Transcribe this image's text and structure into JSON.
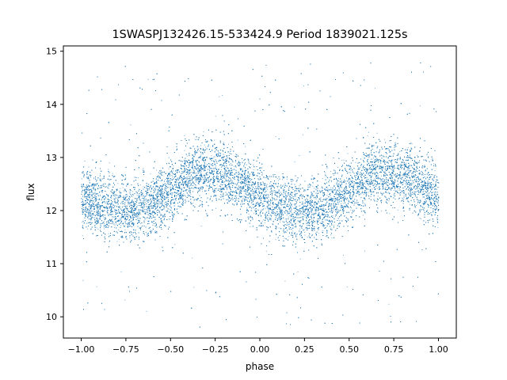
{
  "chart_data": {
    "type": "scatter",
    "title": "1SWASPJ132426.15-533424.9 Period 1839021.125s",
    "xlabel": "phase",
    "ylabel": "flux",
    "xlim": [
      -1.1,
      1.1
    ],
    "ylim": [
      9.6,
      15.1
    ],
    "xticks": [
      "−1.00",
      "−0.75",
      "−0.50",
      "−0.25",
      "0.00",
      "0.25",
      "0.50",
      "0.75",
      "1.00"
    ],
    "yticks": [
      "10",
      "11",
      "12",
      "13",
      "14",
      "15"
    ],
    "grid": false,
    "legend": "none",
    "point_color": "#1f77b4",
    "series": [
      {
        "phase_range": [
          -1.0,
          1.0
        ],
        "points": 24000,
        "trend_phase": [
          -1.0,
          -0.875,
          -0.75,
          -0.625,
          -0.5,
          -0.375,
          -0.25,
          -0.125,
          0.0,
          0.125,
          0.25,
          0.375,
          0.5,
          0.625,
          0.75,
          0.875,
          1.0
        ],
        "trend_flux": [
          12.25,
          12.1,
          12.0,
          12.1,
          12.4,
          12.7,
          12.75,
          12.55,
          12.25,
          12.1,
          12.0,
          12.1,
          12.4,
          12.7,
          12.75,
          12.55,
          12.25
        ],
        "core_spread_flux": [
          11.2,
          13.3
        ],
        "outlier_range_flux": [
          9.8,
          14.8
        ]
      }
    ]
  }
}
